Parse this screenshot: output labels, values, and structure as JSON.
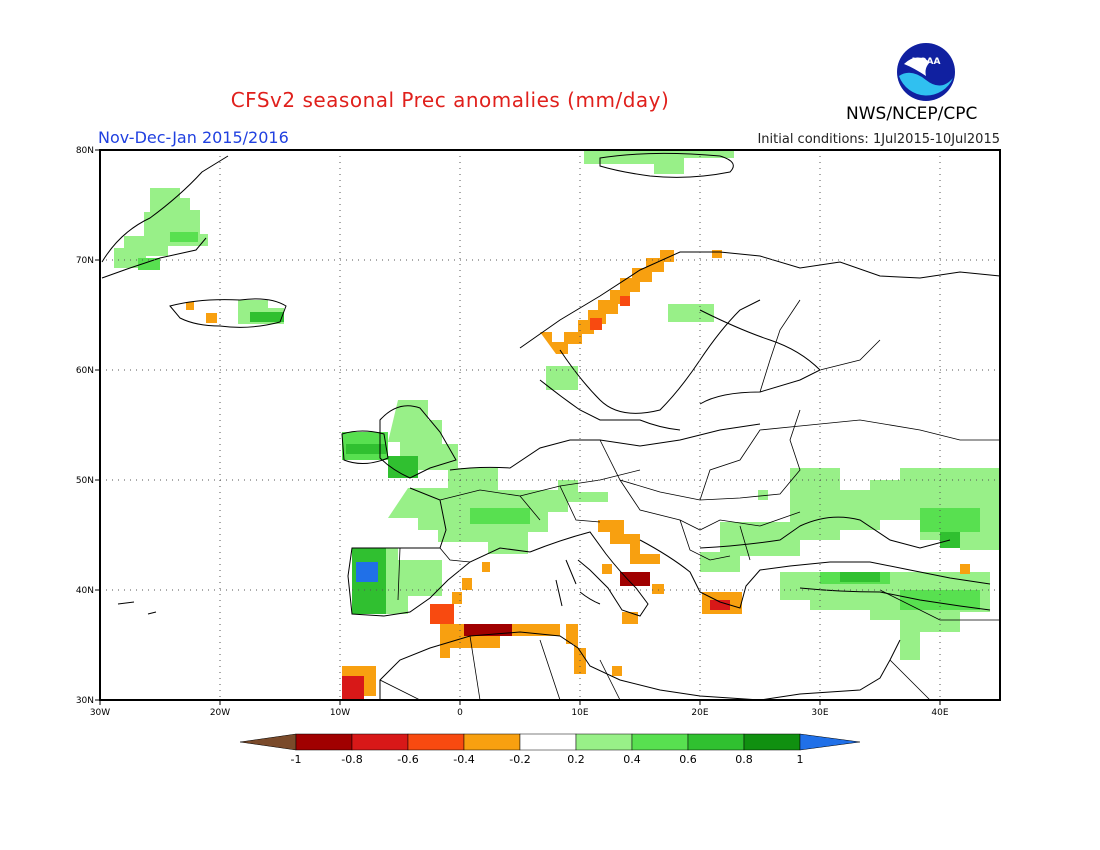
{
  "title": "CFSv2 seasonal Prec anomalies (mm/day)",
  "period": "Nov-Dec-Jan 2015/2016",
  "initial_conditions": "Initial conditions: 1Jul2015-10Jul2015",
  "organization": "NWS/NCEP/CPC",
  "logo_text": "NOAA",
  "map": {
    "lon_range": [
      -30,
      45
    ],
    "lat_range": [
      30,
      80
    ],
    "lon_labels": [
      "30W",
      "20W",
      "10W",
      "0",
      "10E",
      "20E",
      "30E",
      "40E"
    ],
    "lat_labels": [
      "30N",
      "40N",
      "50N",
      "60N",
      "70N",
      "80N"
    ]
  },
  "colorbar": {
    "labels": [
      "-1",
      "-0.8",
      "-0.6",
      "-0.4",
      "-0.2",
      "0.2",
      "0.4",
      "0.6",
      "0.8",
      "1"
    ],
    "colors": [
      "#7a4a2a",
      "#a00000",
      "#d81818",
      "#f84a10",
      "#f8a010",
      "#ffffff",
      "#98f088",
      "#58e050",
      "#30c030",
      "#109010",
      "#2070e8"
    ]
  }
}
